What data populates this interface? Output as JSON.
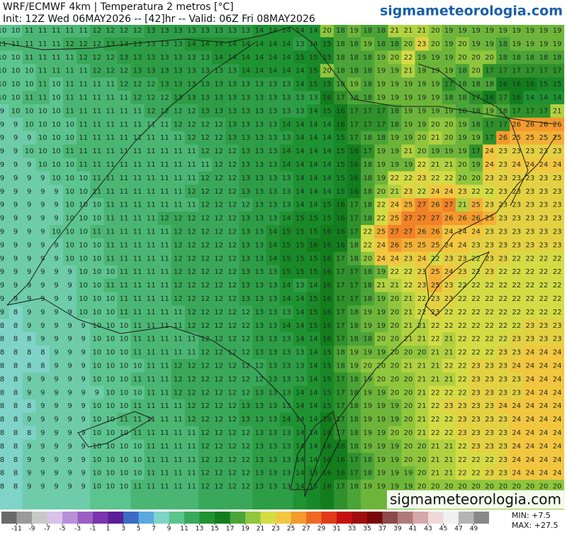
{
  "header": {
    "title": "WRF/ECMWF 4km | Temperatura 2 metros [°C]",
    "subtitle": "Init: 12Z Wed 06MAY2026 -- [42]hr -- Valid: 06Z Fri 08MAY2026",
    "site": "sigmameteorologia.com"
  },
  "watermark": "sigmameteorologia.com",
  "stats": {
    "min": "MIN: +7.5",
    "max": "MAX: +27.5"
  },
  "colorbar": {
    "ticks": [
      -11,
      -9,
      -7,
      -5,
      -3,
      -1,
      1,
      3,
      5,
      7,
      9,
      11,
      13,
      15,
      17,
      19,
      21,
      23,
      25,
      27,
      29,
      31,
      33,
      35,
      37,
      39,
      41,
      43,
      45,
      47,
      49
    ],
    "colors": [
      "#6a6a6a",
      "#9a9a9a",
      "#c8c8c8",
      "#d8c2ea",
      "#b98fd8",
      "#9a5fc4",
      "#7a34ad",
      "#5a1e96",
      "#3d6bc4",
      "#5aa8e0",
      "#7fd3c8",
      "#5cc48e",
      "#3aa85a",
      "#1f9232",
      "#137d1e",
      "#4aa437",
      "#8fc63d",
      "#d4dc45",
      "#f3c640",
      "#f39a2e",
      "#ee6a22",
      "#e03a18",
      "#c81010",
      "#a00c0c",
      "#7a0808",
      "#8e4a4a",
      "#b07a7a",
      "#d4a8a8",
      "#eed8d8",
      "#f0f0f0",
      "#b4b4b4",
      "#888888"
    ]
  },
  "grid": {
    "rows": [
      [
        10,
        10,
        11,
        11,
        11,
        11,
        11,
        12,
        12,
        12,
        12,
        13,
        13,
        13,
        13,
        13,
        13,
        13,
        13,
        14,
        14,
        14,
        14,
        14,
        20,
        18,
        19,
        18,
        18,
        21,
        21,
        21,
        20,
        19,
        19,
        19,
        19,
        19,
        19,
        19,
        19,
        19
      ],
      [
        11,
        11,
        11,
        11,
        11,
        12,
        12,
        12,
        13,
        13,
        13,
        13,
        13,
        13,
        14,
        14,
        14,
        14,
        14,
        14,
        14,
        14,
        13,
        14,
        15,
        18,
        18,
        19,
        18,
        18,
        20,
        23,
        20,
        19,
        20,
        19,
        19,
        18,
        19,
        19,
        19,
        19
      ],
      [
        10,
        10,
        11,
        11,
        11,
        11,
        12,
        12,
        12,
        13,
        13,
        13,
        13,
        13,
        13,
        13,
        14,
        14,
        14,
        14,
        14,
        14,
        15,
        15,
        15,
        18,
        18,
        18,
        19,
        20,
        22,
        19,
        19,
        19,
        20,
        20,
        20,
        18,
        18,
        18,
        18,
        18
      ],
      [
        10,
        10,
        10,
        11,
        11,
        11,
        11,
        12,
        12,
        12,
        13,
        13,
        13,
        13,
        13,
        13,
        13,
        13,
        14,
        14,
        14,
        14,
        14,
        15,
        20,
        18,
        18,
        18,
        19,
        19,
        21,
        19,
        19,
        19,
        18,
        20,
        17,
        17,
        17,
        17,
        17,
        17
      ],
      [
        10,
        10,
        10,
        11,
        10,
        11,
        11,
        11,
        11,
        12,
        12,
        12,
        13,
        13,
        13,
        13,
        13,
        13,
        13,
        13,
        13,
        13,
        14,
        15,
        15,
        18,
        19,
        18,
        19,
        19,
        19,
        19,
        19,
        17,
        18,
        18,
        18,
        16,
        16,
        16,
        15,
        15
      ],
      [
        10,
        10,
        11,
        11,
        10,
        11,
        11,
        11,
        11,
        11,
        12,
        12,
        12,
        13,
        13,
        13,
        13,
        13,
        13,
        13,
        13,
        13,
        13,
        13,
        16,
        17,
        18,
        18,
        19,
        19,
        19,
        19,
        19,
        18,
        18,
        17,
        16,
        17,
        16,
        14,
        14,
        14
      ],
      [
        9,
        10,
        10,
        10,
        10,
        11,
        11,
        11,
        11,
        11,
        11,
        12,
        12,
        12,
        12,
        13,
        13,
        13,
        13,
        13,
        13,
        13,
        13,
        14,
        15,
        16,
        17,
        17,
        17,
        18,
        19,
        19,
        19,
        19,
        18,
        18,
        19,
        18,
        17,
        17,
        17,
        21
      ],
      [
        9,
        9,
        10,
        10,
        10,
        10,
        11,
        11,
        11,
        11,
        11,
        11,
        11,
        12,
        12,
        12,
        12,
        13,
        13,
        13,
        13,
        14,
        14,
        14,
        14,
        16,
        17,
        17,
        17,
        18,
        19,
        19,
        20,
        20,
        19,
        18,
        17,
        17,
        26,
        26,
        26,
        26
      ],
      [
        9,
        9,
        9,
        10,
        10,
        10,
        11,
        11,
        11,
        11,
        11,
        11,
        11,
        11,
        12,
        12,
        12,
        13,
        13,
        13,
        13,
        13,
        14,
        14,
        14,
        15,
        17,
        18,
        18,
        19,
        19,
        20,
        21,
        20,
        19,
        19,
        17,
        26,
        25,
        25,
        25,
        25
      ],
      [
        9,
        9,
        10,
        10,
        10,
        11,
        11,
        11,
        11,
        11,
        11,
        11,
        11,
        11,
        11,
        12,
        12,
        12,
        13,
        13,
        13,
        14,
        14,
        14,
        14,
        15,
        16,
        17,
        19,
        19,
        21,
        20,
        19,
        19,
        19,
        17,
        24,
        23,
        23,
        23,
        23,
        23
      ],
      [
        9,
        9,
        9,
        10,
        10,
        10,
        11,
        11,
        11,
        11,
        11,
        11,
        11,
        11,
        11,
        11,
        12,
        12,
        13,
        13,
        13,
        14,
        14,
        14,
        14,
        15,
        16,
        18,
        19,
        19,
        19,
        22,
        21,
        21,
        20,
        19,
        24,
        23,
        24,
        24,
        24,
        24
      ],
      [
        9,
        9,
        9,
        9,
        10,
        10,
        10,
        11,
        11,
        11,
        11,
        11,
        11,
        11,
        11,
        12,
        12,
        12,
        13,
        13,
        13,
        13,
        14,
        14,
        14,
        15,
        16,
        18,
        19,
        22,
        22,
        23,
        22,
        22,
        20,
        20,
        23,
        23,
        23,
        23,
        23,
        23
      ],
      [
        9,
        9,
        9,
        9,
        9,
        10,
        10,
        11,
        11,
        11,
        11,
        11,
        11,
        11,
        12,
        12,
        12,
        12,
        13,
        13,
        13,
        13,
        14,
        14,
        14,
        15,
        16,
        18,
        20,
        21,
        23,
        22,
        24,
        24,
        23,
        22,
        22,
        23,
        23,
        23,
        23,
        23
      ],
      [
        9,
        9,
        9,
        9,
        9,
        10,
        10,
        10,
        11,
        11,
        11,
        11,
        11,
        11,
        11,
        12,
        12,
        12,
        12,
        13,
        13,
        13,
        14,
        14,
        15,
        16,
        17,
        18,
        22,
        24,
        25,
        27,
        26,
        27,
        21,
        25,
        23,
        23,
        23,
        23,
        23,
        23
      ],
      [
        9,
        9,
        9,
        9,
        9,
        10,
        10,
        10,
        11,
        11,
        11,
        11,
        12,
        12,
        12,
        12,
        12,
        12,
        13,
        13,
        13,
        14,
        15,
        15,
        15,
        16,
        17,
        18,
        22,
        25,
        27,
        27,
        27,
        26,
        26,
        26,
        25,
        23,
        23,
        23,
        23,
        23
      ],
      [
        9,
        9,
        9,
        9,
        10,
        10,
        10,
        11,
        11,
        11,
        11,
        11,
        11,
        12,
        12,
        12,
        12,
        12,
        13,
        13,
        14,
        15,
        15,
        15,
        16,
        16,
        17,
        22,
        25,
        27,
        27,
        26,
        26,
        24,
        24,
        24,
        23,
        23,
        23,
        23,
        23,
        23
      ],
      [
        9,
        9,
        9,
        9,
        9,
        10,
        10,
        10,
        11,
        11,
        11,
        11,
        11,
        12,
        12,
        12,
        12,
        12,
        13,
        13,
        14,
        15,
        15,
        16,
        16,
        16,
        18,
        22,
        24,
        26,
        25,
        25,
        25,
        24,
        24,
        23,
        23,
        23,
        23,
        23,
        23,
        23
      ],
      [
        9,
        9,
        9,
        9,
        9,
        10,
        10,
        10,
        11,
        11,
        11,
        11,
        11,
        12,
        12,
        12,
        12,
        12,
        13,
        13,
        14,
        15,
        15,
        15,
        16,
        17,
        18,
        20,
        24,
        24,
        23,
        24,
        22,
        23,
        23,
        22,
        23,
        23,
        22,
        22,
        22,
        22
      ],
      [
        9,
        9,
        9,
        9,
        9,
        9,
        10,
        10,
        10,
        11,
        11,
        11,
        11,
        12,
        12,
        12,
        12,
        12,
        13,
        13,
        13,
        15,
        15,
        15,
        16,
        17,
        17,
        18,
        19,
        22,
        22,
        23,
        25,
        24,
        23,
        22,
        23,
        22,
        22,
        22,
        22,
        22
      ],
      [
        9,
        9,
        9,
        9,
        9,
        9,
        10,
        10,
        11,
        11,
        11,
        11,
        11,
        12,
        12,
        12,
        12,
        12,
        13,
        13,
        13,
        14,
        13,
        14,
        16,
        17,
        17,
        18,
        21,
        21,
        22,
        23,
        25,
        23,
        22,
        22,
        22,
        22,
        22,
        22,
        22,
        22
      ],
      [
        9,
        9,
        9,
        9,
        9,
        9,
        10,
        10,
        10,
        11,
        11,
        11,
        11,
        12,
        12,
        12,
        12,
        12,
        13,
        13,
        13,
        14,
        14,
        15,
        16,
        17,
        17,
        18,
        19,
        20,
        21,
        22,
        23,
        23,
        22,
        22,
        22,
        22,
        22,
        22,
        22,
        22
      ],
      [
        9,
        8,
        9,
        9,
        9,
        9,
        10,
        10,
        10,
        11,
        11,
        11,
        11,
        11,
        12,
        12,
        12,
        12,
        12,
        13,
        13,
        13,
        14,
        15,
        16,
        17,
        18,
        19,
        19,
        20,
        21,
        22,
        23,
        22,
        22,
        22,
        22,
        22,
        22,
        22,
        22,
        22
      ],
      [
        8,
        8,
        9,
        9,
        9,
        9,
        9,
        10,
        10,
        10,
        11,
        11,
        11,
        11,
        12,
        12,
        12,
        12,
        12,
        13,
        13,
        14,
        14,
        15,
        16,
        17,
        18,
        19,
        19,
        20,
        21,
        21,
        22,
        22,
        22,
        22,
        22,
        22,
        22,
        23,
        23,
        23
      ],
      [
        8,
        8,
        8,
        9,
        9,
        9,
        9,
        10,
        10,
        10,
        11,
        11,
        11,
        11,
        11,
        12,
        12,
        12,
        12,
        13,
        13,
        13,
        14,
        14,
        16,
        17,
        18,
        18,
        20,
        20,
        21,
        21,
        22,
        21,
        22,
        22,
        22,
        22,
        23,
        23,
        23,
        23
      ],
      [
        8,
        8,
        8,
        8,
        9,
        9,
        9,
        10,
        10,
        10,
        11,
        11,
        11,
        11,
        11,
        12,
        12,
        12,
        12,
        13,
        13,
        13,
        13,
        14,
        15,
        18,
        19,
        19,
        19,
        20,
        20,
        20,
        21,
        21,
        22,
        22,
        22,
        23,
        23,
        24,
        24,
        24
      ],
      [
        8,
        8,
        8,
        8,
        9,
        9,
        9,
        10,
        10,
        10,
        10,
        11,
        11,
        12,
        12,
        12,
        12,
        12,
        12,
        12,
        13,
        13,
        13,
        14,
        15,
        18,
        19,
        20,
        20,
        20,
        21,
        21,
        21,
        22,
        22,
        23,
        23,
        23,
        24,
        24,
        24,
        24
      ],
      [
        8,
        8,
        9,
        9,
        9,
        9,
        9,
        10,
        10,
        10,
        11,
        11,
        11,
        12,
        12,
        12,
        12,
        12,
        12,
        12,
        13,
        13,
        13,
        14,
        15,
        17,
        18,
        19,
        20,
        20,
        20,
        21,
        21,
        21,
        22,
        23,
        23,
        23,
        23,
        24,
        24,
        24
      ],
      [
        8,
        8,
        9,
        9,
        9,
        9,
        9,
        9,
        10,
        10,
        10,
        11,
        11,
        12,
        12,
        12,
        12,
        12,
        12,
        13,
        13,
        13,
        14,
        14,
        15,
        17,
        18,
        19,
        19,
        20,
        20,
        21,
        22,
        22,
        22,
        23,
        23,
        23,
        23,
        24,
        24,
        24
      ],
      [
        8,
        8,
        8,
        9,
        9,
        9,
        9,
        10,
        10,
        10,
        11,
        11,
        11,
        11,
        12,
        12,
        12,
        12,
        13,
        13,
        13,
        13,
        14,
        14,
        15,
        17,
        18,
        19,
        19,
        19,
        20,
        21,
        22,
        23,
        23,
        23,
        23,
        24,
        24,
        24,
        24,
        24
      ],
      [
        8,
        8,
        9,
        9,
        9,
        9,
        9,
        10,
        10,
        11,
        11,
        11,
        11,
        11,
        12,
        12,
        12,
        12,
        13,
        13,
        13,
        14,
        14,
        14,
        16,
        17,
        18,
        19,
        19,
        19,
        20,
        21,
        22,
        22,
        23,
        23,
        23,
        23,
        24,
        24,
        24,
        24
      ],
      [
        8,
        8,
        8,
        9,
        9,
        9,
        9,
        10,
        10,
        10,
        11,
        11,
        11,
        11,
        11,
        12,
        12,
        12,
        12,
        13,
        13,
        13,
        14,
        14,
        16,
        17,
        18,
        19,
        19,
        20,
        20,
        21,
        22,
        22,
        23,
        23,
        23,
        23,
        24,
        24,
        24,
        24
      ],
      [
        8,
        8,
        9,
        9,
        9,
        9,
        9,
        10,
        10,
        10,
        10,
        11,
        11,
        11,
        11,
        12,
        12,
        12,
        12,
        13,
        13,
        13,
        14,
        14,
        16,
        16,
        18,
        19,
        19,
        19,
        20,
        20,
        21,
        21,
        22,
        23,
        23,
        23,
        24,
        24,
        24,
        24
      ],
      [
        8,
        8,
        9,
        9,
        9,
        9,
        9,
        10,
        10,
        10,
        10,
        11,
        11,
        11,
        11,
        12,
        12,
        12,
        12,
        13,
        13,
        13,
        14,
        14,
        16,
        16,
        17,
        18,
        19,
        19,
        20,
        20,
        21,
        21,
        22,
        22,
        22,
        23,
        24,
        24,
        24,
        24
      ],
      [
        8,
        8,
        9,
        9,
        9,
        9,
        9,
        10,
        10,
        10,
        10,
        11,
        11,
        11,
        11,
        12,
        12,
        12,
        12,
        13,
        13,
        13,
        14,
        15,
        16,
        16,
        17,
        18,
        19,
        19,
        19,
        20,
        21,
        21,
        22,
        22,
        23,
        23,
        24,
        24,
        24,
        24
      ],
      [
        8,
        8,
        9,
        9,
        9,
        9,
        9,
        10,
        10,
        10,
        11,
        11,
        11,
        11,
        11,
        12,
        12,
        12,
        12,
        13,
        13,
        13,
        14,
        15,
        16,
        17,
        18,
        19,
        19,
        19,
        19,
        20,
        20,
        20,
        20,
        20,
        20,
        20,
        20,
        20,
        20,
        20
      ]
    ]
  }
}
